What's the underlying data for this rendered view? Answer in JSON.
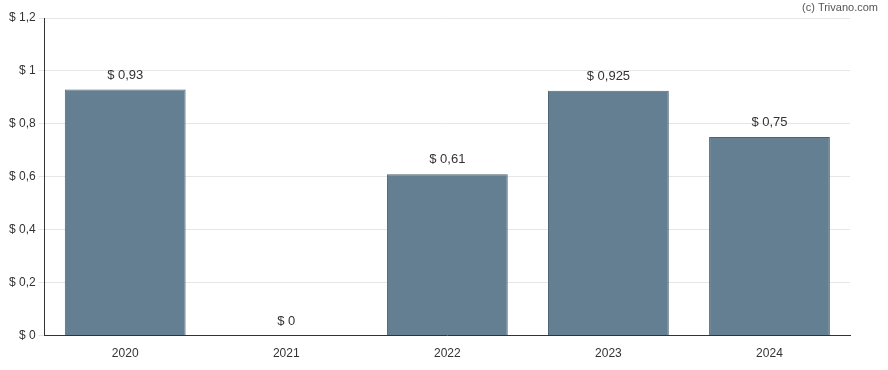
{
  "chart_data": {
    "type": "bar",
    "categories": [
      "2020",
      "2021",
      "2022",
      "2023",
      "2024"
    ],
    "values": [
      0.93,
      0,
      0.61,
      0.925,
      0.75
    ],
    "value_labels": [
      "$ 0,93",
      "$ 0",
      "$ 0,61",
      "$ 0,925",
      "$ 0,75"
    ],
    "data_labels": true,
    "color": "#647f91",
    "ylim": [
      0,
      1.2
    ],
    "yticks": [
      {
        "value": 0,
        "label": "$ 0"
      },
      {
        "value": 0.2,
        "label": "$ 0,2"
      },
      {
        "value": 0.4,
        "label": "$ 0,4"
      },
      {
        "value": 0.6,
        "label": "$ 0,6"
      },
      {
        "value": 0.8,
        "label": "$ 0,8"
      },
      {
        "value": 1,
        "label": "$ 1"
      },
      {
        "value": 1.2,
        "label": "$ 1,2"
      }
    ],
    "grid": true,
    "annotations": [
      "(c) Trivano.com"
    ]
  }
}
